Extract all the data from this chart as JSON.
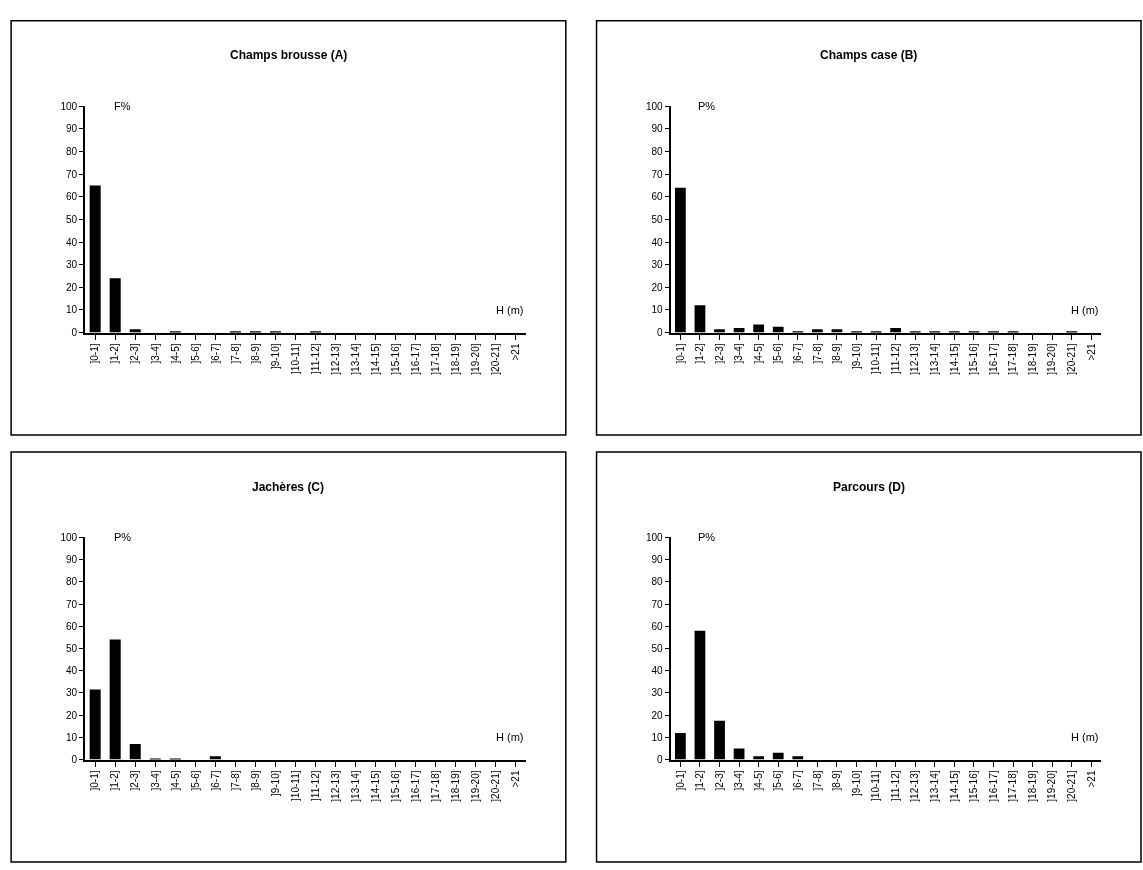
{
  "chart_data": [
    {
      "type": "bar",
      "title": "Champs brousse (A)",
      "ylabel": "F%",
      "xlabel": "H (m)",
      "categories": [
        "]0-1]",
        "]1-2]",
        "]2-3]",
        "]3-4]",
        "]4-5]",
        "]5-6]",
        "]6-7]",
        "]7-8]",
        "]8-9]",
        "]9-10]",
        "]10-11]",
        "]11-12]",
        "]12-13]",
        "]13-14]",
        "]14-15]",
        "]15-16]",
        "]16-17]",
        "]17-18]",
        "]18-19]",
        "]19-20]",
        "]20-21]",
        ">21"
      ],
      "values": [
        65,
        24,
        1.5,
        0,
        0.5,
        0,
        0,
        0.5,
        0.5,
        0.5,
        0,
        0.5,
        0,
        0,
        0,
        0,
        0,
        0,
        0,
        0,
        0,
        0
      ],
      "color": "#000000",
      "ylim": [
        0,
        100
      ],
      "yticks": [
        0,
        10,
        20,
        30,
        40,
        50,
        60,
        70,
        80,
        90,
        100
      ]
    },
    {
      "type": "bar",
      "title": "Champs case (B)",
      "ylabel": "P%",
      "xlabel": "H (m)",
      "categories": [
        "]0-1]",
        "]1-2]",
        "]2-3]",
        "]3-4]",
        "]4-5]",
        "]5-6]",
        "]6-7]",
        "]7-8]",
        "]8-9]",
        "]9-10]",
        "]10-11]",
        "]11-12]",
        "]12-13]",
        "]13-14]",
        "]14-15]",
        "]15-16]",
        "]16-17]",
        "]17-18]",
        "]18-19]",
        "]19-20]",
        "]20-21]",
        ">21"
      ],
      "values": [
        64,
        12,
        1.5,
        2,
        3.5,
        2.5,
        0.5,
        1.5,
        1.5,
        0.5,
        0.5,
        2,
        0.5,
        0.5,
        0.5,
        0.5,
        0.5,
        0.5,
        0,
        0,
        0.5,
        0
      ],
      "color": "#000000",
      "ylim": [
        0,
        100
      ],
      "yticks": [
        0,
        10,
        20,
        30,
        40,
        50,
        60,
        70,
        80,
        90,
        100
      ]
    },
    {
      "type": "bar",
      "title": "Jachères (C)",
      "ylabel": "P%",
      "xlabel": "H (m)",
      "categories": [
        "]0-1]",
        "]1-2]",
        "]2-3]",
        "]3-4]",
        "]4-5]",
        "]5-6]",
        "]6-7]",
        "]7-8]",
        "]8-9]",
        "]9-10]",
        "]10-11]",
        "]11-12]",
        "]12-13]",
        "]13-14]",
        "]14-15]",
        "]15-16]",
        "]16-17]",
        "]17-18]",
        "]18-19]",
        "]19-20]",
        "]20-21]",
        ">21"
      ],
      "values": [
        31.5,
        54,
        7,
        0.5,
        0.5,
        0,
        1.5,
        0,
        0,
        0,
        0,
        0,
        0,
        0,
        0,
        0,
        0,
        0,
        0,
        0,
        0,
        0
      ],
      "color": "#000000",
      "ylim": [
        0,
        100
      ],
      "yticks": [
        0,
        10,
        20,
        30,
        40,
        50,
        60,
        70,
        80,
        90,
        100
      ]
    },
    {
      "type": "bar",
      "title": "Parcours (D)",
      "ylabel": "P%",
      "xlabel": "H (m)",
      "categories": [
        "]0-1]",
        "]1-2]",
        "]2-3]",
        "]3-4]",
        "]4-5]",
        "]5-6]",
        "]6-7]",
        "]7-8]",
        "]8-9]",
        "]9-10]",
        "]10-11]",
        "]11-12]",
        "]12-13]",
        "]13-14]",
        "]14-15]",
        "]15-16]",
        "]16-17]",
        "]17-18]",
        "]18-19]",
        "]19-20]",
        "]20-21]",
        ">21"
      ],
      "values": [
        12,
        58,
        17.5,
        5,
        1.5,
        3,
        1.5,
        0,
        0,
        0,
        0,
        0,
        0,
        0,
        0,
        0,
        0,
        0,
        0,
        0,
        0,
        0
      ],
      "color": "#000000",
      "ylim": [
        0,
        100
      ],
      "yticks": [
        0,
        10,
        20,
        30,
        40,
        50,
        60,
        70,
        80,
        90,
        100
      ]
    }
  ]
}
